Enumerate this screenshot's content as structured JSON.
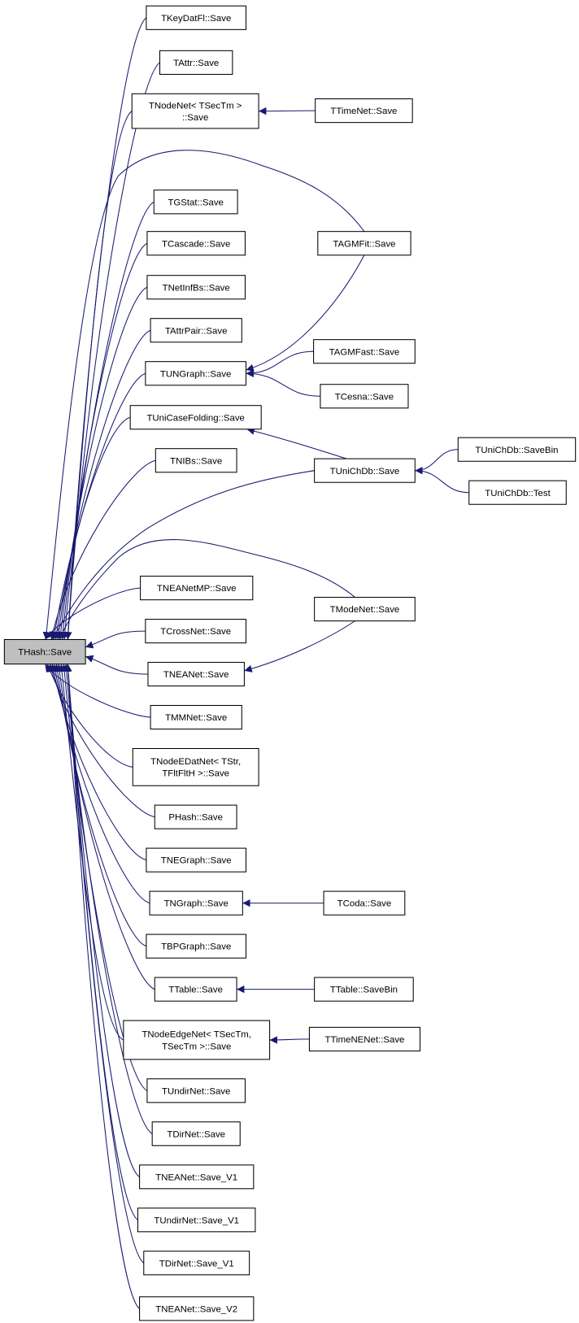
{
  "graph": {
    "edge_color": "#191970",
    "root_fill": "#bfbfbf",
    "nodes": {
      "thash": [
        "THash::Save"
      ],
      "tkeydatfl": [
        "TKeyDatFl::Save"
      ],
      "tattr": [
        "TAttr::Save"
      ],
      "tnodenet": [
        "TNodeNet< TSecTm >",
        "::Save"
      ],
      "tgstat": [
        "TGStat::Save"
      ],
      "tcascade": [
        "TCascade::Save"
      ],
      "tnetinfbs": [
        "TNetInfBs::Save"
      ],
      "tattrpair": [
        "TAttrPair::Save"
      ],
      "tungraph": [
        "TUNGraph::Save"
      ],
      "tunicasefolding": [
        "TUniCaseFolding::Save"
      ],
      "tnibs": [
        "TNIBs::Save"
      ],
      "tneanetmp": [
        "TNEANetMP::Save"
      ],
      "tcrossnet": [
        "TCrossNet::Save"
      ],
      "tneanet": [
        "TNEANet::Save"
      ],
      "tmmnet": [
        "TMMNet::Save"
      ],
      "tnodeedatnet": [
        "TNodeEDatNet< TStr,",
        "TFltFltH >::Save"
      ],
      "phash": [
        "PHash::Save"
      ],
      "tnegraph": [
        "TNEGraph::Save"
      ],
      "tngraph": [
        "TNGraph::Save"
      ],
      "tbpgraph": [
        "TBPGraph::Save"
      ],
      "ttable": [
        "TTable::Save"
      ],
      "tnodeedgenet": [
        "TNodeEdgeNet< TSecTm,",
        "TSecTm >::Save"
      ],
      "tundirnet": [
        "TUndirNet::Save"
      ],
      "tdirnet": [
        "TDirNet::Save"
      ],
      "tneanet_v1": [
        "TNEANet::Save_V1"
      ],
      "tundirnet_v1": [
        "TUndirNet::Save_V1"
      ],
      "tdirnet_v1": [
        "TDirNet::Save_V1"
      ],
      "tneanet_v2": [
        "TNEANet::Save_V2"
      ],
      "ttimenet": [
        "TTimeNet::Save"
      ],
      "tagmfit": [
        "TAGMFit::Save"
      ],
      "tagmfast": [
        "TAGMFast::Save"
      ],
      "tcesna": [
        "TCesna::Save"
      ],
      "tunichdb": [
        "TUniChDb::Save"
      ],
      "tmodenet": [
        "TModeNet::Save"
      ],
      "tcoda": [
        "TCoda::Save"
      ],
      "ttable_savebin": [
        "TTable::SaveBin"
      ],
      "ttimenenet": [
        "TTimeNENet::Save"
      ],
      "tunichdb_savebin": [
        "TUniChDb::SaveBin"
      ],
      "tunichdb_test": [
        "TUniChDb::Test"
      ]
    },
    "edges": [
      [
        "tkeydatfl",
        "thash"
      ],
      [
        "tattr",
        "thash"
      ],
      [
        "tnodenet",
        "thash"
      ],
      [
        "tagmfit",
        "thash"
      ],
      [
        "tgstat",
        "thash"
      ],
      [
        "tcascade",
        "thash"
      ],
      [
        "tnetinfbs",
        "thash"
      ],
      [
        "tattrpair",
        "thash"
      ],
      [
        "tungraph",
        "thash"
      ],
      [
        "tunicasefolding",
        "thash"
      ],
      [
        "tnibs",
        "thash"
      ],
      [
        "tunichdb",
        "thash"
      ],
      [
        "tmodenet",
        "thash"
      ],
      [
        "tneanetmp",
        "thash"
      ],
      [
        "tcrossnet",
        "thash"
      ],
      [
        "tneanet",
        "thash"
      ],
      [
        "tmmnet",
        "thash"
      ],
      [
        "tnodeedatnet",
        "thash"
      ],
      [
        "phash",
        "thash"
      ],
      [
        "tnegraph",
        "thash"
      ],
      [
        "tngraph",
        "thash"
      ],
      [
        "tbpgraph",
        "thash"
      ],
      [
        "ttable",
        "thash"
      ],
      [
        "tnodeedgenet",
        "thash"
      ],
      [
        "tundirnet",
        "thash"
      ],
      [
        "tdirnet",
        "thash"
      ],
      [
        "tneanet_v1",
        "thash"
      ],
      [
        "tundirnet_v1",
        "thash"
      ],
      [
        "tdirnet_v1",
        "thash"
      ],
      [
        "tneanet_v2",
        "thash"
      ],
      [
        "ttimenet",
        "tnodenet"
      ],
      [
        "tagmfit",
        "tungraph"
      ],
      [
        "tagmfast",
        "tungraph"
      ],
      [
        "tcesna",
        "tungraph"
      ],
      [
        "tunichdb",
        "tunicasefolding"
      ],
      [
        "tunichdb_savebin",
        "tunichdb"
      ],
      [
        "tunichdb_test",
        "tunichdb"
      ],
      [
        "tmodenet",
        "tneanet"
      ],
      [
        "tcoda",
        "tngraph"
      ],
      [
        "ttable_savebin",
        "ttable"
      ],
      [
        "ttimenenet",
        "tnodeedgenet"
      ]
    ]
  }
}
